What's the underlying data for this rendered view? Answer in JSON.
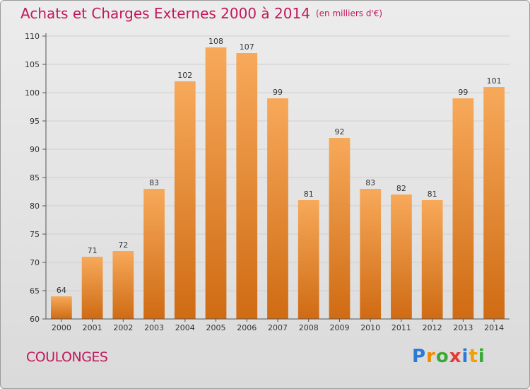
{
  "header": {
    "title": "Achats et Charges Externes 2000 à 2014",
    "unit_note": "(en milliers d'€)"
  },
  "footer": {
    "city": "COULONGES",
    "logo_text": "Proxiti"
  },
  "colors": {
    "title": "#c2185b",
    "bar_top": "#f7a95a",
    "bar_bottom": "#cf6b13",
    "axis": "#555555",
    "grid": "#cfcfcf"
  },
  "chart_data": {
    "type": "bar",
    "categories": [
      "2000",
      "2001",
      "2002",
      "2003",
      "2004",
      "2005",
      "2006",
      "2007",
      "2008",
      "2009",
      "2010",
      "2011",
      "2012",
      "2013",
      "2014"
    ],
    "values": [
      64,
      71,
      72,
      83,
      102,
      108,
      107,
      99,
      81,
      92,
      83,
      82,
      81,
      99,
      101
    ],
    "ylim": [
      60,
      110
    ],
    "yticks": [
      60,
      65,
      70,
      75,
      80,
      85,
      90,
      95,
      100,
      105,
      110
    ],
    "grid": true,
    "data_labels": true,
    "legend": "none"
  }
}
